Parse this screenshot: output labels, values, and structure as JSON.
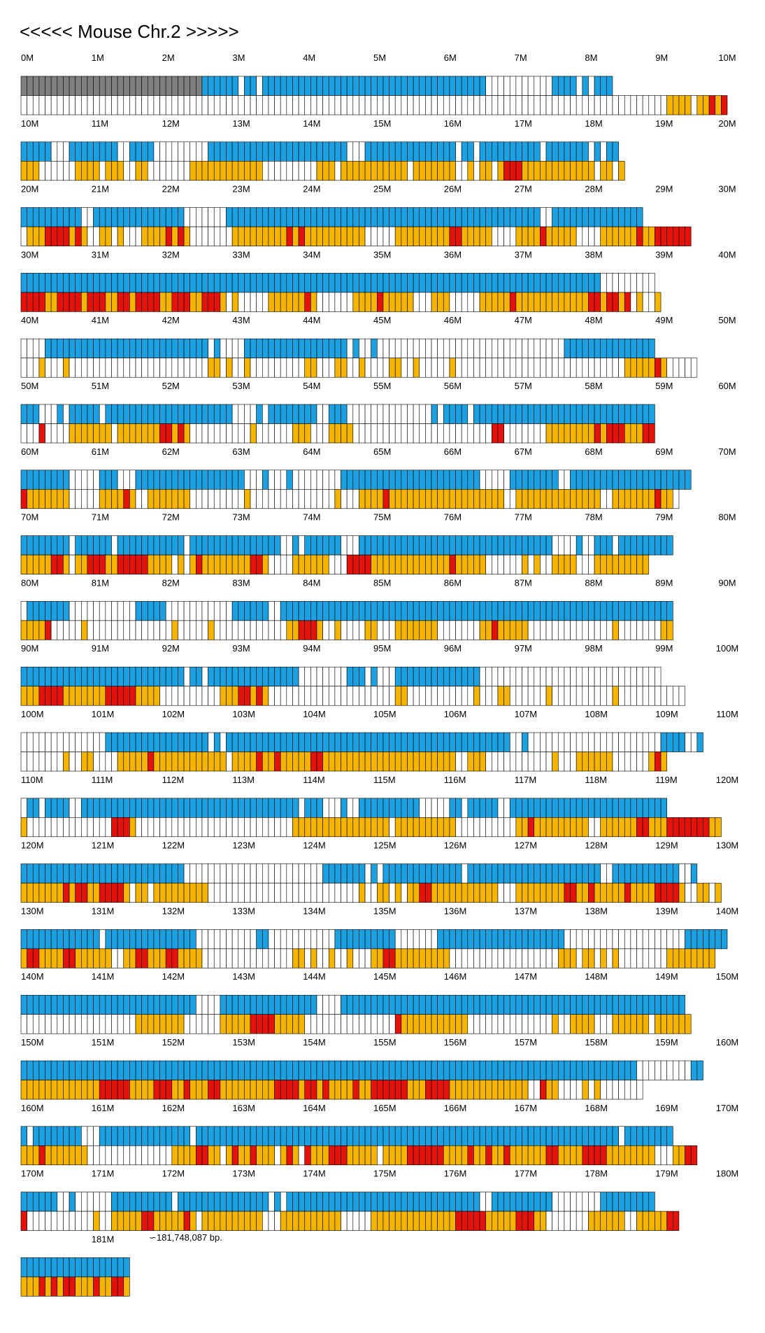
{
  "title": "<<<<< Mouse Chr.2 >>>>>",
  "end_label": "∽181,748,087 bp.",
  "unit_suffix": "M",
  "colors": {
    "upper_track": "#1ba1e2",
    "lower_track": "#f5b400",
    "highlight": "#e3120b",
    "gap": "#7f7f7f",
    "empty": "#ffffff",
    "marker": "#e3120b"
  },
  "chart_data": {
    "type": "heatmap",
    "chromosome": "Chr.2",
    "length_bp": 181748087,
    "rows": [
      {
        "start_mb": 0,
        "upper": "GGGGGGGGGGGGGGGGGGGGGGGGGGGGGGBBBBBB.BB.BBBBBBBBBBBBBBBBBBBBBBBBBBBBBBBBBBBBB...........BBBB.B.BBB",
        "lower": "...........................................................................................................YYYY.YYRYRRYYYYYYYYYYRRY.YRYYY......................Y...Y.....Y.........YRR"
      },
      {
        "start_mb": 10,
        "upper": "BBBBB...BBBBBBBB..BBBB.........BBBBBBBBBBBBBBBBBBBBBBB...BBBBBBBBBBBBBBB.BB.BBBBBBBBBB.BBBBBBB.B.BB",
        "lower": "YYY......YYYY.YYY..YY.......YYYYYYYYYYYY.........YYY.YYYYYYYYYYY.YYYYYYY..Y.YY.YRRRYYYYYYYYYYYY.YY.Y"
      },
      {
        "start_mb": 20,
        "upper": "BBBBBBBBBB..BBBBBBBBBBBBBBB.......BBBBBBBBBBBBBBBBBBBBBBBBBBBBBBBBBBBBBBBBBBBBBBBBBBBB..BBBBBBBBBBBBBBB",
        "lower": ".YYYRRRRYRY..YY.Y...YYYYRYRY.......YYYYYYYYYRYRYYYYYYYYYY.....YYYYYYYYYRRYYYYY....YYYYRYYYYY....YYYYYYRYYRRRRRR"
      },
      {
        "start_mb": 30,
        "upper": "BBBBBBBBBBBBBBBBBBBBBBBBBBBBBBBBBBBBBBBBBBBBBBBBBBBBBBBBBBBBBBBBBBBBBBBBBBBBBBBBBBBBBBBBBBBBBBBB.........",
        "lower": "RRRRYYRRRRYRRRYYRRYRRRRYYRRRYYRRRY.Y.....YYYYYYRY......YYYYRYYYYY...YYY.....YYYYYRYYYYYYYYYYYYRRYRRYR.Y..Y"
      },
      {
        "start_mb": 40,
        "upper": "....BBBBBBBBBBBBBBBBBBBBBBBBBBB.B....BBBBBBBBBBBBBBBBB.B..B...............................BBBBBBBBBBBBBBB",
        "lower": "...Y...Y.......................YY.Y..Y.........YY...YY..Y....YY..Y.....Y............................YYYYYRY....."
      },
      {
        "start_mb": 50,
        "upper": "BBB...B.BBBBB.BBBBBBBBBBBBBBBBBBBBB....B.BBBBBBBB..BBB..............B.BBBB.BBBBBBBBBBBBBBBBBBBBBBBBBBBBBB",
        "lower": "...R....YYYYYYY.YYYYYYYRRYRY..........Y......YYY...YYYY.......................RR.......YYYYYYYYRYRRRYYYRR"
      },
      {
        "start_mb": 60,
        "upper": "BBBBBBBB.....BBB...BBBBBBBBBBBBBBBBBB...B...B........BBBBBBBBBBBBBBBBBBBBBBB.....BBBBBBBB..BBBBBBBBBBBBBBBBBBBB",
        "lower": "RYYYYYYY.....YYYYRY..YYYYYYY.........Y..............Y...YYYYRYYYYYYYYYYYYYYYYYYY..YYYYYYYYYYYYYY..YYYYYYYRYY."
      },
      {
        "start_mb": 70,
        "upper": "BBBBBBBB.BBBBBB.BBBBBBBBBBB.BBBBBBBBBBBBBBB..B.BBBBBB...BBBBBBBBBBBBBBBBBBBBBBBBBBBBBBBB....B..BBB.BBBBBBBBB",
        "lower": "YYYYYRRY.YYRRRYYRRRRRYYYY.Y.YRYYYYYYYYRRY....YYYYYY...RRRRYYYYYYYYYYYYYRYYYYY......Y.Y..YYYY...YYYYYYYYY"
      },
      {
        "start_mb": 80,
        "upper": ".BBBBBBB...........BBBBB...........BBBBBB..BBBBBBBBBBBBBBBBBBBBBBBBBBBBBBBBBBBBBBBBBBBBBBBBBBBBBBBBBBBBBBBBB",
        "lower": "YYYYR.....Y..............Y.....Y............YYRRRY..Y....YY...YYYYYYY.......YYRYYYYY..............Y.......YY"
      },
      {
        "start_mb": 90,
        "upper": "BBBBBBBBBBBBBBBBBBBBBBBBBBB.BB.BBBBBBBBBBBBBBB........BBB.B...BBBBBBBBBBBBBB..............................",
        "lower": "YYYRRRRYYYYYYYRRRRRYYYY..........YYYRRYRY.....................YY...........Y...YY......Y..........Y..........."
      },
      {
        "start_mb": 100,
        "upper": "..............BBBBBBBBBBBBBBBBB.B.BBBBBBBBBBBBBBBBBBBBBBBBBBBBBBBBBBBBBBBBBBBBBBB..B......................BBBB..B",
        "lower": ".......Y..YY....YYYYYRYYYYYYYYYYYY.YYYYRYYRYYYYYRRYYYYYYYYYYYYYYYYYYYYYY..YYY...........Y...YYYYYY......YRY"
      },
      {
        "start_mb": 110,
        "upper": ".BB.BBBB..BBBBBBBBBBBBBBBBBBBBBBBBBBBBBBBBBBBB.BBB...B..BBBBBBBBBB.....BB.BBBBB..BBBBBBBBBBBBBBBBBBBBBBBBBB",
        "lower": "Y..............RRRY..........................YYYYYYYYYYYYYYYY.YYYYYYYYYY..........YYRYYYYYYYYY..YYYYYYRRYYYRRRRRRRYY"
      },
      {
        "start_mb": 120,
        "upper": "BBBBBBBBBBBBBBBBBBBBBBBBBBB.......................BBBBBBB.B.BBBBBBBBBBBBB.BBBBBBBBBBBBBBBBBBBBBB..BBBBBBBBBBB..B",
        "lower": "YYYYYYYRYRRYYRRRRY.YY.YYYYYYYYY.........................Y..YY.Y.YYRRYYYYYYYYYYY...YYYYYYYYRRYYRYYYYYRYYYYRRRRY..YY.Y"
      },
      {
        "start_mb": 130,
        "upper": "BBBBBBBBBBBBB.BBBBBBBBBBBBBBB..........BB...........BBBBBBBBBB.......BBBBBBBBBBBBBBBBBBBBB....................BBBBBBB",
        "lower": "YRRYYYYRRYYYYYY..YYRRYYYRRYYYY...............YY.Y..Y..Y...YYRRYYYYYYYYY..................YYY.YY.Y.Y........YYYYYYYY"
      },
      {
        "start_mb": 140,
        "upper": "BBBBBBBBBBBBBBBBBBBBBBBBBBBBB....BBBBBBBBBBBBBBBB....BBBBBBBBBBBBBBBBBBBBBBBBBBBBBBBBBBBBBBBBBBBBBBBBBBBBBBBBB",
        "lower": "...................YYYYYYYY......YYYYYRRRRYYYYY...............RYYYYYYYYYYY..............Y..YYYY...YYYYYY.YYYYYY"
      },
      {
        "start_mb": 150,
        "upper": "BBBBBBBBBBBBBBBBBBBBBBBBBBBBBBBBBBBBBBBBBBBBBBBBBBBBBBBBBBBBBBBBBBBBBBBBBBBBBBBBBBBBBBBBBBBBBBBBBBBBBB.........BB",
        "lower": "YYYYYYYYYYYYYRRRRRYYYYRRRYYRYYYRRYYYYYYYYYRRRRYRRYRYYYYRYYRRRRRRYYYRRRRYYYYYYYYYYYYY..RYY....Y.Y......."
      },
      {
        "start_mb": 160,
        "upper": "B.BBBBBBBB...BBBBBBBBBBBBBBB.BBBBBBBBBBBBBBBBBBBBBBBBBBBBBBBBBBBBBBBBBBBBBBBBBBBBBBBBBBBBBBBBBBBBBB.BBBBBBBB",
        "lower": "YYYRYYYYYYY..............YYYYRRYY.YRYYRYYY.YRY.RYYYRRRYYYYY.YYYYRRRRRRYYYYRYYRYYRYYYYYYRRYYYYRRRRYYYYYYYY...YYRR"
      },
      {
        "start_mb": 170,
        "upper": "BBBBBB..B......BBBBBBBBBB.BBBBBBBBBBBBBBB.B.BBBBBBBBBBBBBBBBBBBBBBBBBBBBBBBB..BBBBBBBBBB........BBBBBBBBB",
        "lower": "R...........Y..YYYYYRRYYYYYRY.YYYYYYYYYY...YYYYYYYYYY.....YYYYYYYYYYYYYYRRRRRYYYYYRRRYY.......YYYYYY..YYYYYRR"
      },
      {
        "start_mb": 180,
        "upper": "BBBBBBBBBBBBBBBBBB",
        "lower": "YYYRYRYRRYYYRYYRRY"
      }
    ]
  }
}
